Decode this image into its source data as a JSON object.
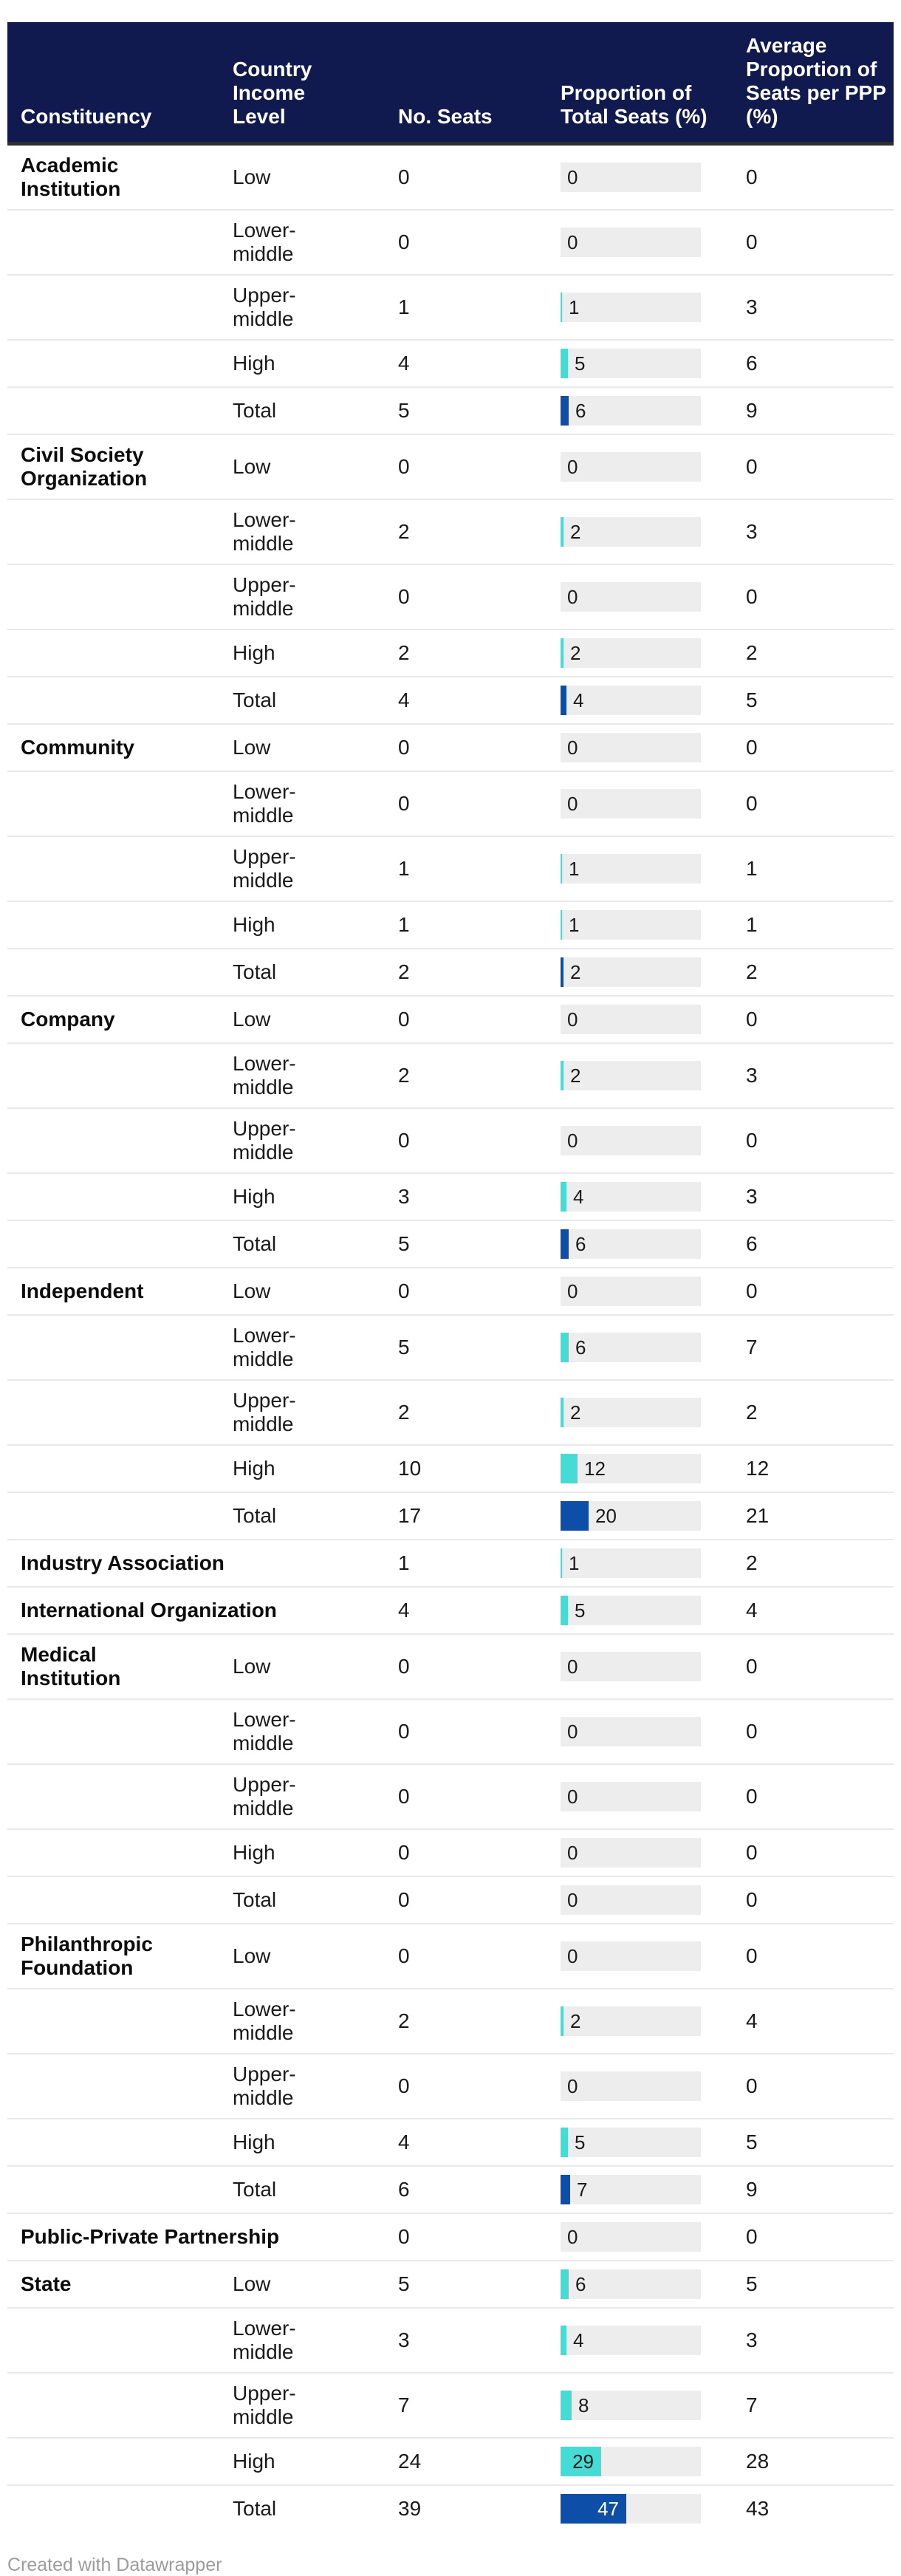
{
  "colors": {
    "header_bg": "#101A4E",
    "header_border": "#2F2F2F",
    "bar": "#46DCD6",
    "bar_total": "#0D4EA8",
    "track": "#EDEDED",
    "row_divider": "#E9E9E9",
    "credit_text": "#9C9C9C"
  },
  "footer": {
    "credit": "Created with Datawrapper"
  },
  "chart_data": {
    "type": "table",
    "title": "",
    "bar_column": "Proportion of Total Seats (%)",
    "bar_scale": [
      0,
      100
    ],
    "legend_position": "none",
    "grid": "row-dividers",
    "columns": [
      "Constituency",
      "Country Income Level",
      "No. Seats",
      "Proportion of Total Seats (%)",
      "Average Proportion of Seats per PPP (%)"
    ],
    "rows": [
      {
        "constituency": "Academic Institution",
        "income_level": "Low",
        "seats": "0",
        "proportion": 0,
        "avg": "0",
        "is_total": false
      },
      {
        "constituency": "",
        "income_level": "Lower-middle",
        "seats": "0",
        "proportion": 0,
        "avg": "0",
        "is_total": false
      },
      {
        "constituency": "",
        "income_level": "Upper-middle",
        "seats": "1",
        "proportion": 1,
        "avg": "3",
        "is_total": false
      },
      {
        "constituency": "",
        "income_level": "High",
        "seats": "4",
        "proportion": 5,
        "avg": "6",
        "is_total": false
      },
      {
        "constituency": "",
        "income_level": "Total",
        "seats": "5",
        "proportion": 6,
        "avg": "9",
        "is_total": true
      },
      {
        "constituency": "Civil Society Organization",
        "income_level": "Low",
        "seats": "0",
        "proportion": 0,
        "avg": "0",
        "is_total": false
      },
      {
        "constituency": "",
        "income_level": "Lower-middle",
        "seats": "2",
        "proportion": 2,
        "avg": "3",
        "is_total": false
      },
      {
        "constituency": "",
        "income_level": "Upper-middle",
        "seats": "0",
        "proportion": 0,
        "avg": "0",
        "is_total": false
      },
      {
        "constituency": "",
        "income_level": "High",
        "seats": "2",
        "proportion": 2,
        "avg": "2",
        "is_total": false
      },
      {
        "constituency": "",
        "income_level": "Total",
        "seats": "4",
        "proportion": 4,
        "avg": "5",
        "is_total": true
      },
      {
        "constituency": "Community",
        "income_level": "Low",
        "seats": "0",
        "proportion": 0,
        "avg": "0",
        "is_total": false
      },
      {
        "constituency": "",
        "income_level": "Lower-middle",
        "seats": "0",
        "proportion": 0,
        "avg": "0",
        "is_total": false
      },
      {
        "constituency": "",
        "income_level": "Upper-middle",
        "seats": "1",
        "proportion": 1,
        "avg": "1",
        "is_total": false
      },
      {
        "constituency": "",
        "income_level": "High",
        "seats": "1",
        "proportion": 1,
        "avg": "1",
        "is_total": false
      },
      {
        "constituency": "",
        "income_level": "Total",
        "seats": "2",
        "proportion": 2,
        "avg": "2",
        "is_total": true
      },
      {
        "constituency": "Company",
        "income_level": "Low",
        "seats": "0",
        "proportion": 0,
        "avg": "0",
        "is_total": false
      },
      {
        "constituency": "",
        "income_level": "Lower-middle",
        "seats": "2",
        "proportion": 2,
        "avg": "3",
        "is_total": false
      },
      {
        "constituency": "",
        "income_level": "Upper-middle",
        "seats": "0",
        "proportion": 0,
        "avg": "0",
        "is_total": false
      },
      {
        "constituency": "",
        "income_level": "High",
        "seats": "3",
        "proportion": 4,
        "avg": "3",
        "is_total": false
      },
      {
        "constituency": "",
        "income_level": "Total",
        "seats": "5",
        "proportion": 6,
        "avg": "6",
        "is_total": true
      },
      {
        "constituency": "Independent",
        "income_level": "Low",
        "seats": "0",
        "proportion": 0,
        "avg": "0",
        "is_total": false
      },
      {
        "constituency": "",
        "income_level": "Lower-middle",
        "seats": "5",
        "proportion": 6,
        "avg": "7",
        "is_total": false
      },
      {
        "constituency": "",
        "income_level": "Upper-middle",
        "seats": "2",
        "proportion": 2,
        "avg": "2",
        "is_total": false
      },
      {
        "constituency": "",
        "income_level": "High",
        "seats": "10",
        "proportion": 12,
        "avg": "12",
        "is_total": false
      },
      {
        "constituency": "",
        "income_level": "Total",
        "seats": "17",
        "proportion": 20,
        "avg": "21",
        "is_total": true
      },
      {
        "constituency": "Industry Association",
        "income_level": "",
        "seats": "1",
        "proportion": 1,
        "avg": "2",
        "is_total": false
      },
      {
        "constituency": "International Organization",
        "income_level": "",
        "seats": "4",
        "proportion": 5,
        "avg": "4",
        "is_total": false
      },
      {
        "constituency": "Medical Institution",
        "income_level": "Low",
        "seats": "0",
        "proportion": 0,
        "avg": "0",
        "is_total": false
      },
      {
        "constituency": "",
        "income_level": "Lower-middle",
        "seats": "0",
        "proportion": 0,
        "avg": "0",
        "is_total": false
      },
      {
        "constituency": "",
        "income_level": "Upper-middle",
        "seats": "0",
        "proportion": 0,
        "avg": "0",
        "is_total": false
      },
      {
        "constituency": "",
        "income_level": "High",
        "seats": "0",
        "proportion": 0,
        "avg": "0",
        "is_total": false
      },
      {
        "constituency": "",
        "income_level": "Total",
        "seats": "0",
        "proportion": 0,
        "avg": "0",
        "is_total": true
      },
      {
        "constituency": "Philanthropic Foundation",
        "income_level": "Low",
        "seats": "0",
        "proportion": 0,
        "avg": "0",
        "is_total": false
      },
      {
        "constituency": "",
        "income_level": "Lower-middle",
        "seats": "2",
        "proportion": 2,
        "avg": "4",
        "is_total": false
      },
      {
        "constituency": "",
        "income_level": "Upper-middle",
        "seats": "0",
        "proportion": 0,
        "avg": "0",
        "is_total": false
      },
      {
        "constituency": "",
        "income_level": "High",
        "seats": "4",
        "proportion": 5,
        "avg": "5",
        "is_total": false
      },
      {
        "constituency": "",
        "income_level": "Total",
        "seats": "6",
        "proportion": 7,
        "avg": "9",
        "is_total": true
      },
      {
        "constituency": "Public-Private Partnership",
        "income_level": "",
        "seats": "0",
        "proportion": 0,
        "avg": "0",
        "is_total": false
      },
      {
        "constituency": "State",
        "income_level": "Low",
        "seats": "5",
        "proportion": 6,
        "avg": "5",
        "is_total": false
      },
      {
        "constituency": "",
        "income_level": "Lower-middle",
        "seats": "3",
        "proportion": 4,
        "avg": "3",
        "is_total": false
      },
      {
        "constituency": "",
        "income_level": "Upper-middle",
        "seats": "7",
        "proportion": 8,
        "avg": "7",
        "is_total": false
      },
      {
        "constituency": "",
        "income_level": "High",
        "seats": "24",
        "proportion": 29,
        "avg": "28",
        "is_total": false
      },
      {
        "constituency": "",
        "income_level": "Total",
        "seats": "39",
        "proportion": 47,
        "avg": "43",
        "is_total": true
      }
    ]
  }
}
